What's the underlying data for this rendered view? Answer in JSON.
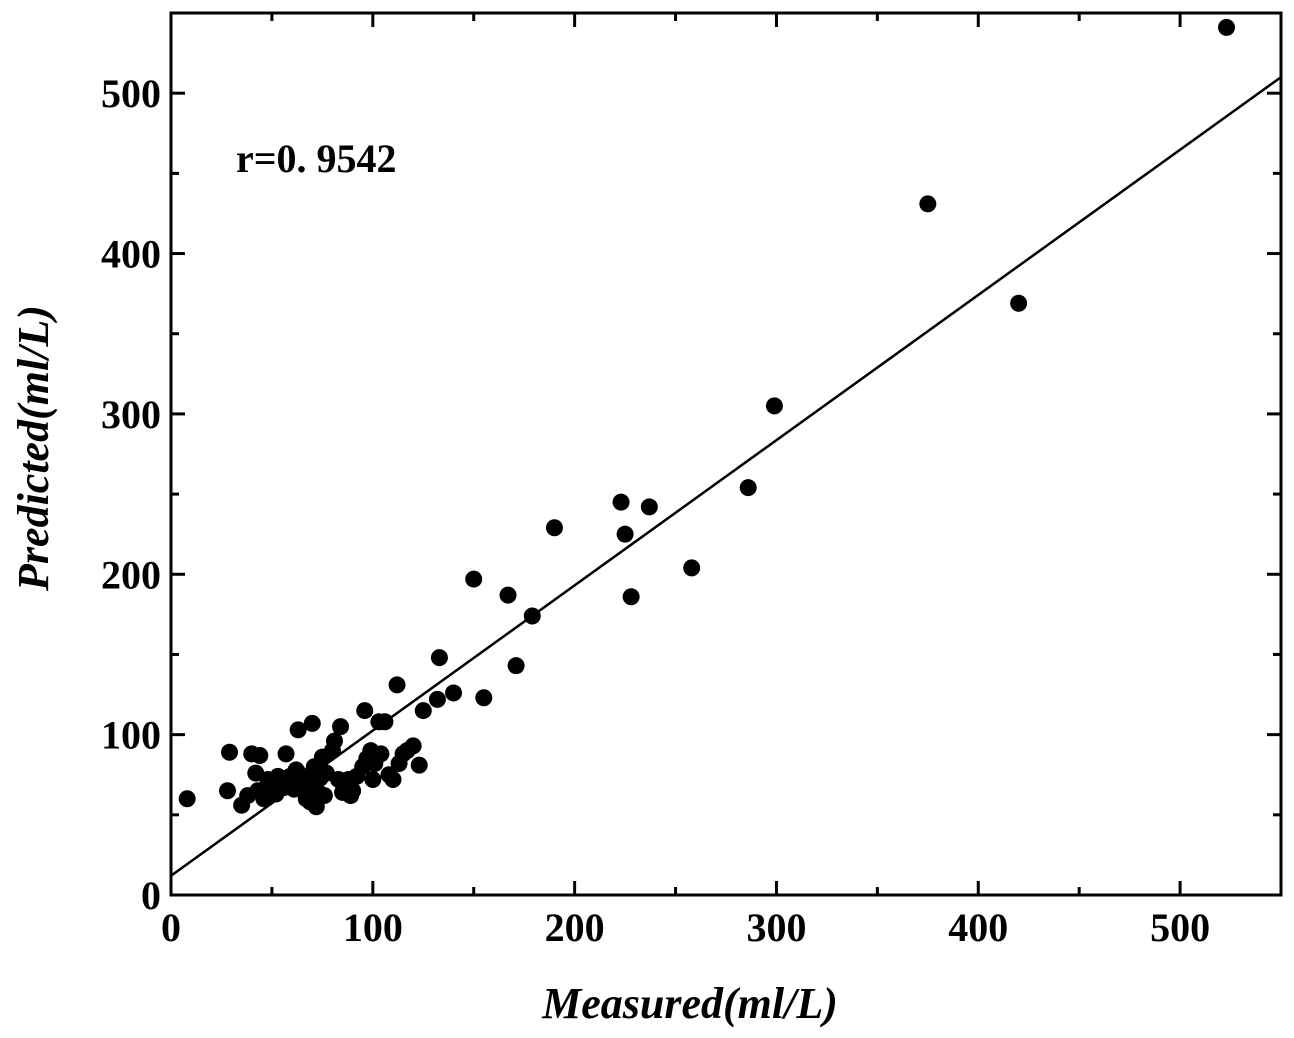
{
  "chart_data": {
    "type": "scatter",
    "title": "",
    "xlabel": "Measured(ml/L)",
    "ylabel": "Predicted(ml/L)",
    "xlim": [
      0,
      550
    ],
    "ylim": [
      0,
      550
    ],
    "x_ticks": [
      "0",
      "100",
      "200",
      "300",
      "400",
      "500"
    ],
    "y_ticks": [
      "0",
      "100",
      "200",
      "300",
      "400",
      "500"
    ],
    "grid": false,
    "legend": "none",
    "annotation": "r=0. 9542",
    "fit_line": {
      "x": [
        0,
        550
      ],
      "y": [
        12,
        510
      ]
    },
    "series": [
      {
        "color": "#000000",
        "points": [
          [
            8,
            60
          ],
          [
            28,
            65
          ],
          [
            29,
            89
          ],
          [
            35,
            56
          ],
          [
            38,
            62
          ],
          [
            40,
            88
          ],
          [
            42,
            76
          ],
          [
            43,
            65
          ],
          [
            44,
            87
          ],
          [
            46,
            60
          ],
          [
            48,
            72
          ],
          [
            50,
            66
          ],
          [
            52,
            63
          ],
          [
            53,
            74
          ],
          [
            55,
            69
          ],
          [
            56,
            67
          ],
          [
            57,
            88
          ],
          [
            59,
            74
          ],
          [
            60,
            70
          ],
          [
            61,
            66
          ],
          [
            62,
            78
          ],
          [
            63,
            103
          ],
          [
            64,
            75
          ],
          [
            65,
            72
          ],
          [
            66,
            68
          ],
          [
            67,
            60
          ],
          [
            68,
            72
          ],
          [
            69,
            58
          ],
          [
            70,
            107
          ],
          [
            71,
            80
          ],
          [
            72,
            55
          ],
          [
            73,
            64
          ],
          [
            74,
            73
          ],
          [
            75,
            86
          ],
          [
            76,
            62
          ],
          [
            77,
            76
          ],
          [
            80,
            90
          ],
          [
            81,
            96
          ],
          [
            83,
            72
          ],
          [
            84,
            105
          ],
          [
            85,
            64
          ],
          [
            87,
            70
          ],
          [
            88,
            72
          ],
          [
            89,
            62
          ],
          [
            90,
            65
          ],
          [
            92,
            74
          ],
          [
            95,
            80
          ],
          [
            96,
            115
          ],
          [
            97,
            85
          ],
          [
            99,
            90
          ],
          [
            100,
            72
          ],
          [
            101,
            82
          ],
          [
            103,
            108
          ],
          [
            104,
            88
          ],
          [
            106,
            108
          ],
          [
            108,
            75
          ],
          [
            110,
            72
          ],
          [
            112,
            131
          ],
          [
            113,
            82
          ],
          [
            115,
            88
          ],
          [
            117,
            90
          ],
          [
            120,
            93
          ],
          [
            123,
            81
          ],
          [
            125,
            115
          ],
          [
            132,
            122
          ],
          [
            133,
            148
          ],
          [
            140,
            126
          ],
          [
            150,
            197
          ],
          [
            155,
            123
          ],
          [
            167,
            187
          ],
          [
            171,
            143
          ],
          [
            179,
            174
          ],
          [
            190,
            229
          ],
          [
            223,
            245
          ],
          [
            225,
            225
          ],
          [
            228,
            186
          ],
          [
            237,
            242
          ],
          [
            258,
            204
          ],
          [
            286,
            254
          ],
          [
            299,
            305
          ],
          [
            375,
            431
          ],
          [
            420,
            369
          ],
          [
            523,
            541
          ]
        ]
      }
    ]
  }
}
